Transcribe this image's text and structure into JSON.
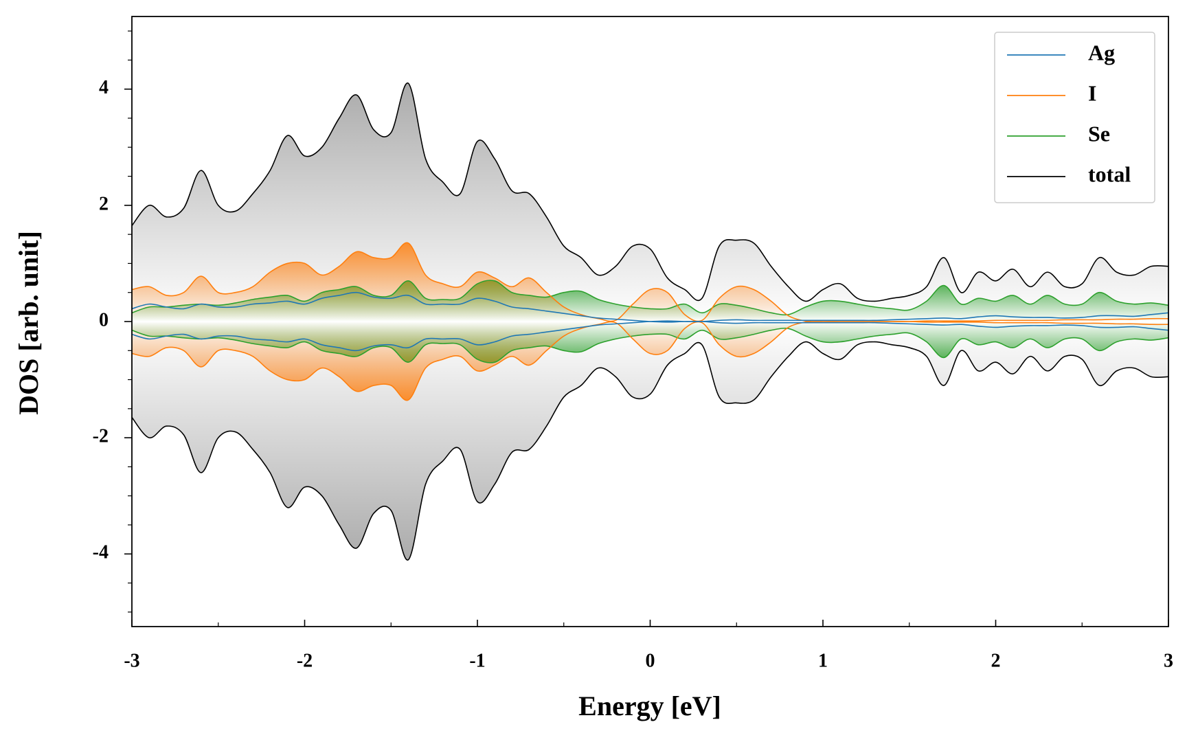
{
  "chart_data": {
    "type": "line",
    "xlabel": "Energy [eV]",
    "ylabel": "DOS [arb. unit]",
    "x": [
      -3.0,
      -2.9,
      -2.8,
      -2.7,
      -2.6,
      -2.5,
      -2.4,
      -2.3,
      -2.2,
      -2.1,
      -2.0,
      -1.9,
      -1.8,
      -1.7,
      -1.6,
      -1.5,
      -1.4,
      -1.3,
      -1.2,
      -1.1,
      -1.0,
      -0.9,
      -0.8,
      -0.7,
      -0.6,
      -0.5,
      -0.4,
      -0.3,
      -0.2,
      -0.1,
      0.0,
      0.1,
      0.2,
      0.3,
      0.4,
      0.5,
      0.6,
      0.7,
      0.8,
      0.9,
      1.0,
      1.1,
      1.2,
      1.3,
      1.4,
      1.5,
      1.6,
      1.7,
      1.8,
      1.9,
      2.0,
      2.1,
      2.2,
      2.3,
      2.4,
      2.5,
      2.6,
      2.7,
      2.8,
      2.9,
      3.0
    ],
    "series": [
      {
        "name": "Ag",
        "color": "#1f77b4",
        "filled": false,
        "values": [
          0.22,
          0.3,
          0.25,
          0.22,
          0.3,
          0.25,
          0.25,
          0.3,
          0.32,
          0.35,
          0.3,
          0.4,
          0.45,
          0.5,
          0.42,
          0.4,
          0.45,
          0.3,
          0.3,
          0.3,
          0.4,
          0.35,
          0.25,
          0.22,
          0.18,
          0.14,
          0.1,
          0.06,
          0.04,
          0.02,
          0.0,
          -0.01,
          0.0,
          0.0,
          0.02,
          0.03,
          0.02,
          0.02,
          0.02,
          0.02,
          0.02,
          0.02,
          0.02,
          0.02,
          0.03,
          0.04,
          0.05,
          0.06,
          0.05,
          0.08,
          0.1,
          0.08,
          0.07,
          0.07,
          0.06,
          0.07,
          0.1,
          0.1,
          0.09,
          0.12,
          0.15
        ],
        "values_down": [
          -0.22,
          -0.3,
          -0.25,
          -0.22,
          -0.3,
          -0.25,
          -0.25,
          -0.3,
          -0.32,
          -0.35,
          -0.3,
          -0.4,
          -0.45,
          -0.5,
          -0.42,
          -0.4,
          -0.45,
          -0.3,
          -0.3,
          -0.3,
          -0.4,
          -0.35,
          -0.25,
          -0.22,
          -0.18,
          -0.14,
          -0.1,
          -0.06,
          -0.04,
          -0.02,
          0.0,
          0.01,
          0.0,
          0.0,
          -0.02,
          -0.03,
          -0.02,
          -0.02,
          -0.02,
          -0.02,
          -0.02,
          -0.02,
          -0.02,
          -0.02,
          -0.03,
          -0.04,
          -0.05,
          -0.06,
          -0.05,
          -0.08,
          -0.1,
          -0.08,
          -0.07,
          -0.07,
          -0.06,
          -0.07,
          -0.1,
          -0.1,
          -0.09,
          -0.12,
          -0.15
        ]
      },
      {
        "name": "I",
        "color": "#ff7f0e",
        "filled": true,
        "values": [
          0.55,
          0.6,
          0.45,
          0.5,
          0.78,
          0.5,
          0.5,
          0.6,
          0.85,
          1.0,
          1.0,
          0.8,
          0.95,
          1.2,
          1.1,
          1.1,
          1.35,
          0.8,
          0.65,
          0.6,
          0.85,
          0.75,
          0.6,
          0.75,
          0.5,
          0.25,
          0.12,
          0.05,
          0.02,
          0.3,
          0.55,
          0.5,
          0.12,
          0.02,
          0.4,
          0.6,
          0.55,
          0.35,
          0.1,
          0.01,
          0.0,
          0.0,
          0.0,
          0.0,
          0.0,
          0.0,
          -0.01,
          -0.01,
          -0.01,
          -0.01,
          -0.02,
          -0.02,
          -0.02,
          -0.02,
          -0.03,
          -0.03,
          -0.03,
          -0.04,
          -0.04,
          -0.05,
          -0.05
        ],
        "values_down": [
          -0.55,
          -0.6,
          -0.45,
          -0.5,
          -0.78,
          -0.5,
          -0.5,
          -0.6,
          -0.85,
          -1.0,
          -1.0,
          -0.8,
          -0.95,
          -1.2,
          -1.1,
          -1.1,
          -1.35,
          -0.8,
          -0.65,
          -0.6,
          -0.85,
          -0.75,
          -0.6,
          -0.75,
          -0.5,
          -0.25,
          -0.12,
          -0.05,
          -0.02,
          -0.3,
          -0.55,
          -0.5,
          -0.12,
          -0.02,
          -0.4,
          -0.6,
          -0.55,
          -0.35,
          -0.1,
          -0.01,
          0.0,
          0.0,
          0.0,
          0.0,
          0.0,
          0.0,
          0.01,
          0.01,
          0.01,
          0.01,
          0.02,
          0.02,
          0.02,
          0.02,
          0.03,
          0.03,
          0.03,
          0.04,
          0.04,
          0.05,
          0.05
        ]
      },
      {
        "name": "Se",
        "color": "#2ca02c",
        "filled": true,
        "values": [
          0.15,
          0.25,
          0.25,
          0.28,
          0.3,
          0.28,
          0.32,
          0.38,
          0.42,
          0.45,
          0.35,
          0.5,
          0.55,
          0.6,
          0.45,
          0.45,
          0.7,
          0.4,
          0.38,
          0.4,
          0.65,
          0.7,
          0.5,
          0.45,
          0.42,
          0.5,
          0.52,
          0.38,
          0.3,
          0.25,
          0.22,
          0.22,
          0.3,
          0.15,
          0.3,
          0.28,
          0.22,
          0.15,
          0.12,
          0.25,
          0.35,
          0.35,
          0.3,
          0.25,
          0.22,
          0.2,
          0.35,
          0.62,
          0.3,
          0.4,
          0.35,
          0.45,
          0.3,
          0.45,
          0.3,
          0.3,
          0.5,
          0.35,
          0.3,
          0.32,
          0.28
        ],
        "values_down": [
          -0.15,
          -0.25,
          -0.25,
          -0.28,
          -0.3,
          -0.28,
          -0.32,
          -0.38,
          -0.42,
          -0.45,
          -0.35,
          -0.5,
          -0.55,
          -0.6,
          -0.45,
          -0.45,
          -0.7,
          -0.4,
          -0.38,
          -0.4,
          -0.65,
          -0.7,
          -0.5,
          -0.45,
          -0.42,
          -0.5,
          -0.52,
          -0.38,
          -0.3,
          -0.25,
          -0.22,
          -0.22,
          -0.3,
          -0.15,
          -0.3,
          -0.28,
          -0.22,
          -0.15,
          -0.12,
          -0.25,
          -0.35,
          -0.35,
          -0.3,
          -0.25,
          -0.22,
          -0.2,
          -0.35,
          -0.62,
          -0.3,
          -0.4,
          -0.35,
          -0.45,
          -0.3,
          -0.45,
          -0.3,
          -0.3,
          -0.5,
          -0.35,
          -0.3,
          -0.32,
          -0.28
        ]
      },
      {
        "name": "total",
        "color": "#000000",
        "filled": true,
        "values": [
          1.65,
          2.0,
          1.8,
          1.95,
          2.6,
          2.0,
          1.9,
          2.2,
          2.6,
          3.2,
          2.85,
          3.0,
          3.5,
          3.9,
          3.3,
          3.25,
          4.1,
          2.8,
          2.4,
          2.2,
          3.1,
          2.8,
          2.25,
          2.2,
          1.8,
          1.3,
          1.1,
          0.8,
          0.95,
          1.3,
          1.25,
          0.75,
          0.55,
          0.4,
          1.3,
          1.4,
          1.35,
          0.95,
          0.6,
          0.35,
          0.55,
          0.65,
          0.4,
          0.35,
          0.4,
          0.45,
          0.6,
          1.1,
          0.5,
          0.85,
          0.7,
          0.9,
          0.6,
          0.85,
          0.6,
          0.65,
          1.1,
          0.85,
          0.8,
          0.95,
          0.95
        ],
        "values_down": [
          -1.65,
          -2.0,
          -1.8,
          -1.95,
          -2.6,
          -2.0,
          -1.9,
          -2.2,
          -2.6,
          -3.2,
          -2.85,
          -3.0,
          -3.5,
          -3.9,
          -3.3,
          -3.25,
          -4.1,
          -2.8,
          -2.4,
          -2.2,
          -3.1,
          -2.8,
          -2.25,
          -2.2,
          -1.8,
          -1.3,
          -1.1,
          -0.8,
          -0.95,
          -1.3,
          -1.25,
          -0.75,
          -0.55,
          -0.4,
          -1.3,
          -1.4,
          -1.35,
          -0.95,
          -0.6,
          -0.35,
          -0.55,
          -0.65,
          -0.4,
          -0.35,
          -0.4,
          -0.45,
          -0.6,
          -1.1,
          -0.5,
          -0.85,
          -0.7,
          -0.9,
          -0.6,
          -0.85,
          -0.6,
          -0.65,
          -1.1,
          -0.85,
          -0.8,
          -0.95,
          -0.95
        ]
      }
    ],
    "xlim": [
      -3,
      3
    ],
    "xticks": [
      -3,
      -2,
      -1,
      0,
      1,
      2,
      3
    ],
    "xminorticks": [
      -2.5,
      -1.5,
      -0.5,
      0.5,
      1.5,
      2.5
    ],
    "ylim": [
      -5.25,
      5.25
    ],
    "yticks": [
      -4,
      -2,
      0,
      2,
      4
    ],
    "yminorticks": [
      -5,
      -4.5,
      -3.5,
      -3,
      -2.5,
      -1.5,
      -1,
      -0.5,
      0.5,
      1,
      1.5,
      2.5,
      3,
      3.5,
      4.5,
      5
    ],
    "legend": "upper right"
  }
}
